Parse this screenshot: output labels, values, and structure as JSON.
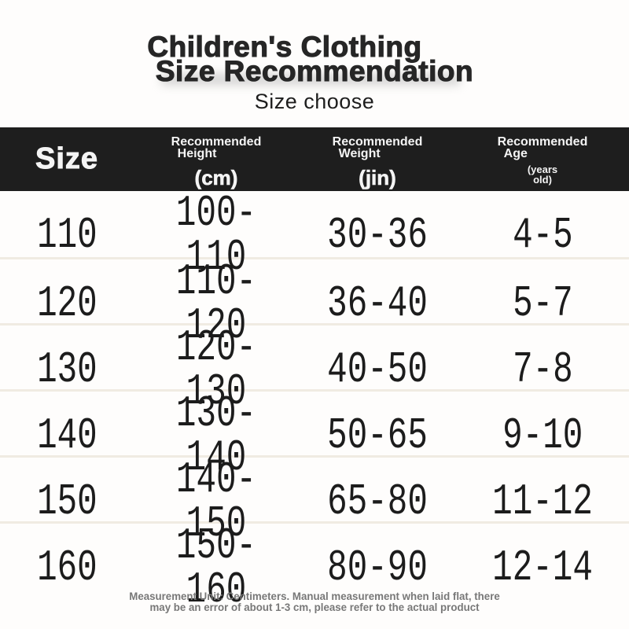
{
  "header": {
    "title_line1": "Children's Clothing",
    "title_line2": "Size Recommendation",
    "subtitle": "Size choose"
  },
  "table": {
    "columns": [
      {
        "label": "Size"
      },
      {
        "line1": "Recommended",
        "line2": "Height",
        "unit": "(cm)"
      },
      {
        "line1": "Recommended",
        "line2": "Weight",
        "unit": "(jin)"
      },
      {
        "line1": "Recommended",
        "line2": "Age",
        "unit_line1": "(years",
        "unit_line2": "old)"
      }
    ],
    "rows": [
      {
        "size": "110",
        "height": "100-110",
        "weight": "30-36",
        "age": "4-5"
      },
      {
        "size": "120",
        "height": "110-120",
        "weight": "36-40",
        "age": "5-7"
      },
      {
        "size": "130",
        "height": "120-130",
        "weight": "40-50",
        "age": "7-8"
      },
      {
        "size": "140",
        "height": "130-140",
        "weight": "50-65",
        "age": "9-10"
      },
      {
        "size": "150",
        "height": "140-150",
        "weight": "65-80",
        "age": "11-12"
      },
      {
        "size": "160",
        "height": "150-160",
        "weight": "80-90",
        "age": "12-14"
      }
    ]
  },
  "footer": {
    "note_line1": "Measurement Unit: Centimeters. Manual measurement when laid flat, there",
    "note_line2": "may be an error of about 1-3 cm, please refer to the actual product"
  },
  "colors": {
    "background": "#fefdfc",
    "header_bg": "#1e1e1e",
    "header_text": "#f4f4f4",
    "body_text": "#1c1c1c",
    "separator": "#f0ebe2",
    "footer_text": "#787878",
    "title_highlight": "#bdbdbd"
  },
  "chart_data": {
    "type": "table",
    "title": "Children's Clothing Size Recommendation",
    "subtitle": "Size choose",
    "columns": [
      "Size",
      "Recommended Height (cm)",
      "Recommended Weight (jin)",
      "Recommended Age (years old)"
    ],
    "rows": [
      [
        "110",
        "100-110",
        "30-36",
        "4-5"
      ],
      [
        "120",
        "110-120",
        "36-40",
        "5-7"
      ],
      [
        "130",
        "120-130",
        "40-50",
        "7-8"
      ],
      [
        "140",
        "130-140",
        "50-65",
        "9-10"
      ],
      [
        "150",
        "140-150",
        "65-80",
        "11-12"
      ],
      [
        "160",
        "150-160",
        "80-90",
        "12-14"
      ]
    ],
    "note": "Measurement Unit: Centimeters. Manual measurement when laid flat, there may be an error of about 1-3 cm, please refer to the actual product",
    "layout": {
      "header_style": "black-band",
      "grid": "horizontal-separators-only"
    }
  }
}
